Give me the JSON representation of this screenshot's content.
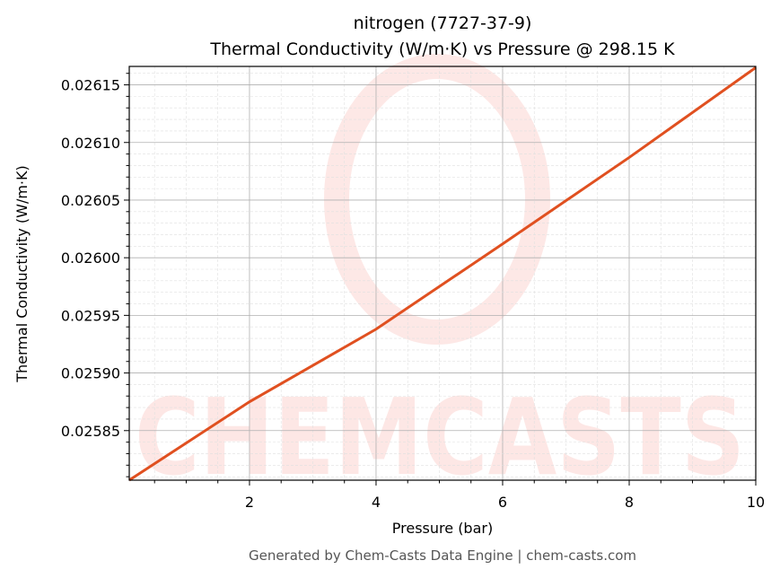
{
  "chart_data": {
    "type": "line",
    "title": "nitrogen (7727-37-9)",
    "subtitle": "Thermal Conductivity (W/m·K) vs Pressure @ 298.15 K",
    "xlabel": "Pressure (bar)",
    "ylabel": "Thermal Conductivity (W/m·K)",
    "xlim": [
      0.1,
      10
    ],
    "ylim": [
      0.025807,
      0.026166
    ],
    "xticks": [
      2,
      4,
      6,
      8,
      10
    ],
    "xtick_labels": [
      "2",
      "4",
      "6",
      "8",
      "10"
    ],
    "yticks": [
      0.02585,
      0.0259,
      0.02595,
      0.026,
      0.02605,
      0.0261,
      0.02615
    ],
    "ytick_labels": [
      "0.02585",
      "0.02590",
      "0.02595",
      "0.02600",
      "0.02605",
      "0.02610",
      "0.02615"
    ],
    "grid": true,
    "series": [
      {
        "name": "nitrogen",
        "color": "#e05020",
        "x": [
          0.1,
          2,
          4,
          6,
          8,
          10
        ],
        "y": [
          0.025807,
          0.025875,
          0.025938,
          0.026012,
          0.026087,
          0.026165
        ]
      }
    ],
    "watermark": "CHEMCASTS",
    "footer": "Generated by Chem-Casts Data Engine | chem-casts.com"
  }
}
